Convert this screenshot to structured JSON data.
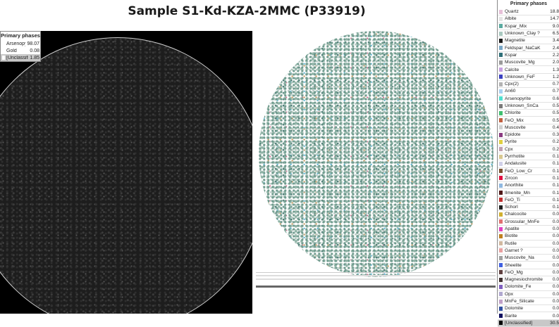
{
  "title": "Sample S1-Kd-KZA-2MMC (P33919)",
  "left_legend": {
    "header": "Primary phases",
    "rows": [
      {
        "name": "Arsenopyrite",
        "value": "98.07",
        "color": "#ffffff",
        "highlight": false
      },
      {
        "name": "Gold",
        "value": "0.08",
        "color": "#ffffff",
        "highlight": false
      },
      {
        "name": "[Unclassified]",
        "value": "1.85",
        "color": "#ffffff",
        "highlight": true
      }
    ]
  },
  "right_legend": {
    "header": "Primary phases",
    "rows": [
      {
        "name": "Quartz",
        "value": "18.8",
        "color": "#e6c0d8",
        "highlight": false
      },
      {
        "name": "Albite",
        "value": "14.7",
        "color": "#e3e3e3",
        "highlight": false
      },
      {
        "name": "Kspar_Mix",
        "value": "9.0",
        "color": "#5aaaa0",
        "highlight": false
      },
      {
        "name": "Unknown_Clay ?",
        "value": "6.5",
        "color": "#a9c9c0",
        "highlight": false
      },
      {
        "name": "Magnetite",
        "value": "3.4",
        "color": "#1a1a1a",
        "highlight": false
      },
      {
        "name": "Feldspar_NaCaK",
        "value": "2.4",
        "color": "#7aa8c8",
        "highlight": false
      },
      {
        "name": "Kspar",
        "value": "2.2",
        "color": "#2f6f78",
        "highlight": false
      },
      {
        "name": "Muscovite_Mg",
        "value": "2.0",
        "color": "#9a9a9a",
        "highlight": false
      },
      {
        "name": "Calcite",
        "value": "1.3",
        "color": "#c7a0e0",
        "highlight": false
      },
      {
        "name": "Unknown_FeF",
        "value": "1.2",
        "color": "#3a40c0",
        "highlight": false
      },
      {
        "name": "Cpx(2)",
        "value": "0.7",
        "color": "#b3b3b3",
        "highlight": false
      },
      {
        "name": "An60",
        "value": "0.7",
        "color": "#a8d0f0",
        "highlight": false
      },
      {
        "name": "Arsenopyrite",
        "value": "0.6",
        "color": "#50e0d0",
        "highlight": false
      },
      {
        "name": "Unknown_SnCa",
        "value": "0.5",
        "color": "#7a7a7a",
        "highlight": false
      },
      {
        "name": "Chlorite",
        "value": "0.5",
        "color": "#40c070",
        "highlight": false
      },
      {
        "name": "FeO_Mix",
        "value": "0.5",
        "color": "#c06040",
        "highlight": false
      },
      {
        "name": "Muscovite",
        "value": "0.4",
        "color": "#d0d0d0",
        "highlight": false
      },
      {
        "name": "Epidote",
        "value": "0.3",
        "color": "#8a3a80",
        "highlight": false
      },
      {
        "name": "Pyrite",
        "value": "0.2",
        "color": "#e0d040",
        "highlight": false
      },
      {
        "name": "Cpx",
        "value": "0.2",
        "color": "#c0a0b0",
        "highlight": false
      },
      {
        "name": "Pyrrhotite",
        "value": "0.1",
        "color": "#d8c890",
        "highlight": false
      },
      {
        "name": "Andalusite",
        "value": "0.1",
        "color": "#d0d0e8",
        "highlight": false
      },
      {
        "name": "FeO_Low_Cr",
        "value": "0.1",
        "color": "#7a5030",
        "highlight": false
      },
      {
        "name": "Zircon",
        "value": "0.1",
        "color": "#e01040",
        "highlight": false
      },
      {
        "name": "Anorthite",
        "value": "0.1",
        "color": "#90b8e0",
        "highlight": false
      },
      {
        "name": "Ilmenite_Mn",
        "value": "0.1",
        "color": "#501818",
        "highlight": false
      },
      {
        "name": "FeO_Ti",
        "value": "0.1",
        "color": "#c03030",
        "highlight": false
      },
      {
        "name": "Schorl",
        "value": "0.1",
        "color": "#202020",
        "highlight": false
      },
      {
        "name": "Chalcocite",
        "value": "0.0",
        "color": "#d0b030",
        "highlight": false
      },
      {
        "name": "Grossular_MnFe",
        "value": "0.0",
        "color": "#e07070",
        "highlight": false
      },
      {
        "name": "Apatite",
        "value": "0.0",
        "color": "#e040c0",
        "highlight": false
      },
      {
        "name": "Biotite",
        "value": "0.0",
        "color": "#c08020",
        "highlight": false
      },
      {
        "name": "Rutile",
        "value": "0.0",
        "color": "#d0b8a0",
        "highlight": false
      },
      {
        "name": "Garnet ?",
        "value": "0.0",
        "color": "#e8a0a0",
        "highlight": false
      },
      {
        "name": "Muscovite_Na",
        "value": "0.0",
        "color": "#a0a0a0",
        "highlight": false
      },
      {
        "name": "Sheelite",
        "value": "0.0",
        "color": "#4060e0",
        "highlight": false
      },
      {
        "name": "FeO_Mg",
        "value": "0.0",
        "color": "#604040",
        "highlight": false
      },
      {
        "name": "Magnesiochromite",
        "value": "0.0",
        "color": "#403030",
        "highlight": false
      },
      {
        "name": "Dolomite_Fe",
        "value": "0.0",
        "color": "#8060c0",
        "highlight": false
      },
      {
        "name": "Opx",
        "value": "0.0",
        "color": "#b0a8d0",
        "highlight": false
      },
      {
        "name": "MnFe_Silicate",
        "value": "0.0",
        "color": "#c0a0c8",
        "highlight": false
      },
      {
        "name": "Dolomite",
        "value": "0.0",
        "color": "#3050a0",
        "highlight": false
      },
      {
        "name": "Barite",
        "value": "0.0",
        "color": "#101060",
        "highlight": false
      },
      {
        "name": "[Unclassified]",
        "value": "30.5",
        "color": "#000000",
        "highlight": true
      }
    ]
  }
}
